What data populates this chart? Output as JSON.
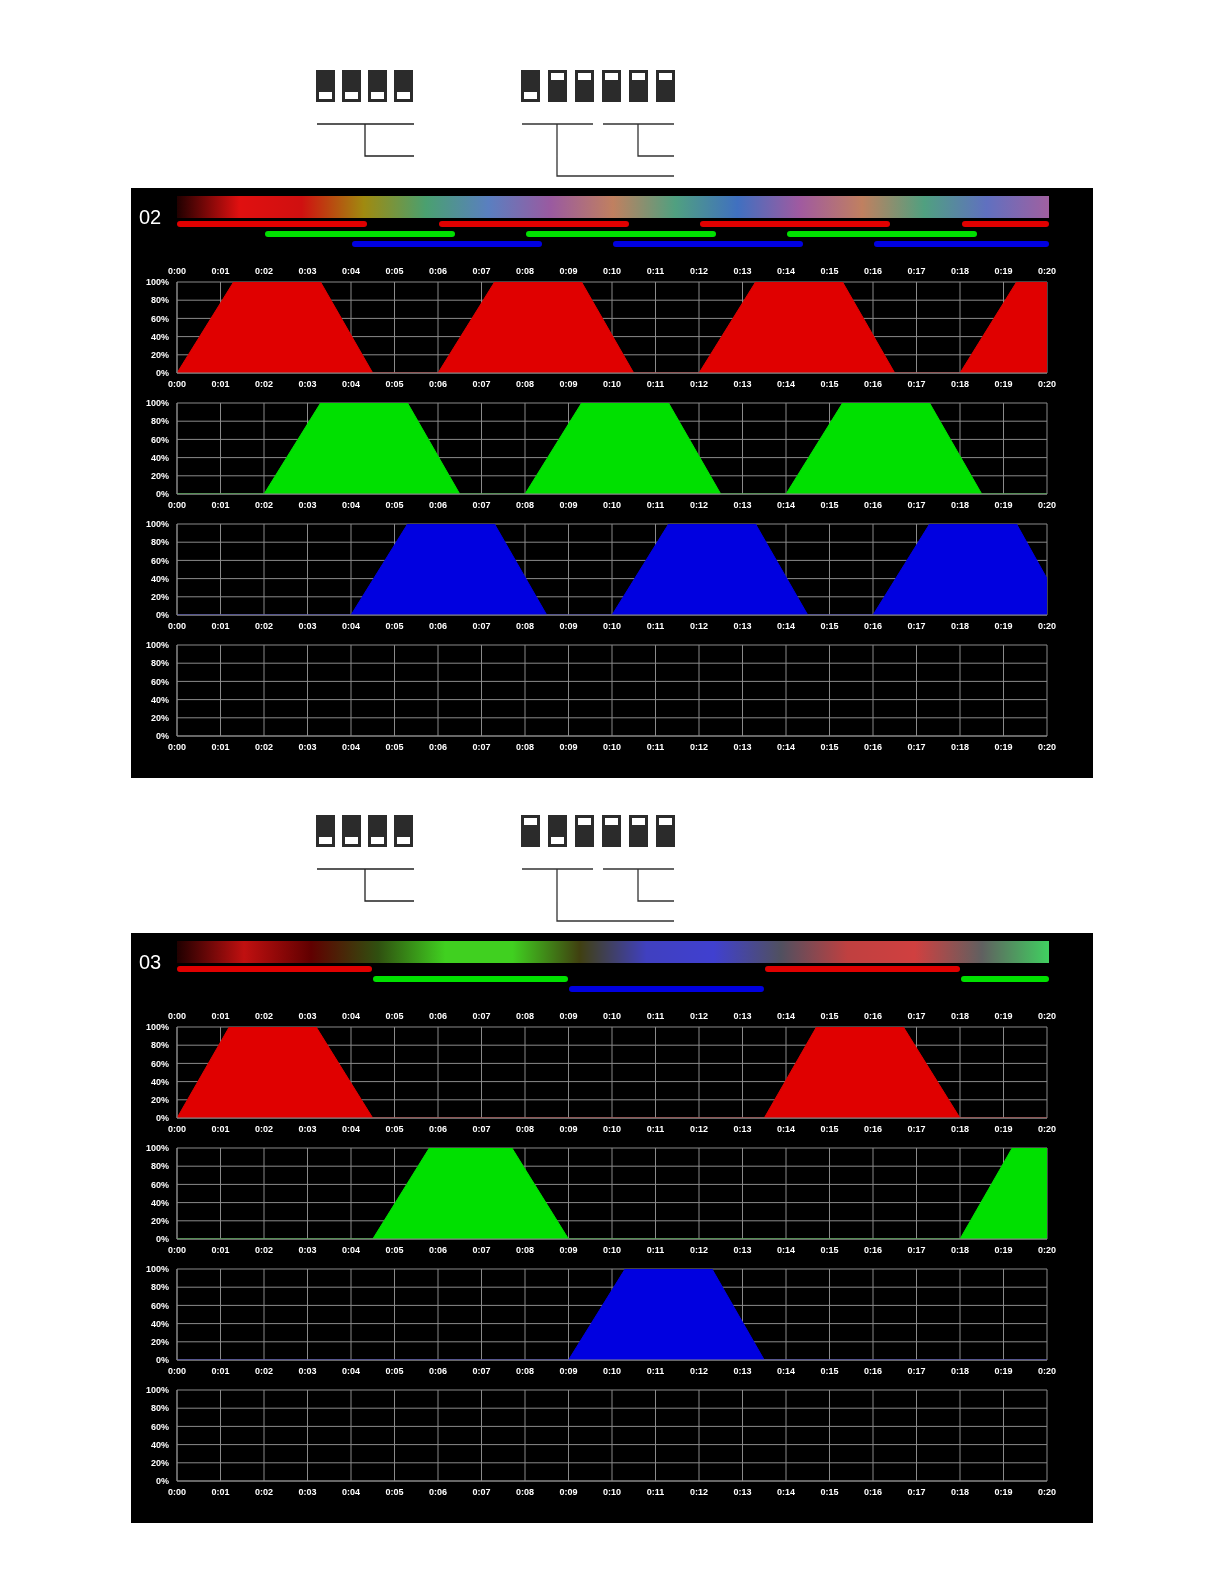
{
  "chart_data": [
    {
      "type": "area",
      "title": "02",
      "xlim": [
        0,
        20
      ],
      "xticks": [
        {
          "value": 0,
          "label": "0:00"
        },
        {
          "value": 1,
          "label": "0:01"
        },
        {
          "value": 2,
          "label": "0:02"
        },
        {
          "value": 3,
          "label": "0:03"
        },
        {
          "value": 4,
          "label": "0:04"
        },
        {
          "value": 5,
          "label": "0:05"
        },
        {
          "value": 6,
          "label": "0:06"
        },
        {
          "value": 7,
          "label": "0:07"
        },
        {
          "value": 8,
          "label": "0:08"
        },
        {
          "value": 9,
          "label": "0:09"
        },
        {
          "value": 10,
          "label": "0:10"
        },
        {
          "value": 11,
          "label": "0:11"
        },
        {
          "value": 12,
          "label": "0:12"
        },
        {
          "value": 13,
          "label": "0:13"
        },
        {
          "value": 14,
          "label": "0:14"
        },
        {
          "value": 15,
          "label": "0:15"
        },
        {
          "value": 16,
          "label": "0:16"
        },
        {
          "value": 17,
          "label": "0:17"
        },
        {
          "value": 18,
          "label": "0:18"
        },
        {
          "value": 19,
          "label": "0:19"
        },
        {
          "value": 20,
          "label": "0:20"
        }
      ],
      "x2lim": [
        0,
        20
      ],
      "x2ticks": [
        {
          "value": 0,
          "label": "0:00"
        },
        {
          "value": 1,
          "label": "0:01"
        },
        {
          "value": 2,
          "label": "0:02"
        },
        {
          "value": 3,
          "label": "0:03"
        },
        {
          "value": 4,
          "label": "0:04"
        },
        {
          "value": 5,
          "label": "0:05"
        },
        {
          "value": 6,
          "label": "0:06"
        },
        {
          "value": 7,
          "label": "0:07"
        },
        {
          "value": 8,
          "label": "0:08"
        },
        {
          "value": 9,
          "label": "0:09"
        },
        {
          "value": 10,
          "label": "0:10"
        },
        {
          "value": 11,
          "label": "0:11"
        },
        {
          "value": 12,
          "label": "0:12"
        },
        {
          "value": 13,
          "label": "0:13"
        },
        {
          "value": 14,
          "label": "0:14"
        },
        {
          "value": 15,
          "label": "0:15"
        },
        {
          "value": 16,
          "label": "0:16"
        },
        {
          "value": 17,
          "label": "0:17"
        },
        {
          "value": 18,
          "label": "0:18"
        },
        {
          "value": 19,
          "label": "0:19"
        },
        {
          "value": 20,
          "label": "0:20"
        }
      ],
      "ylim": [
        0,
        100
      ],
      "yticks": [
        {
          "value": 0,
          "label": "0%"
        },
        {
          "value": 20,
          "label": "20%"
        },
        {
          "value": 40,
          "label": "40%"
        },
        {
          "value": 60,
          "label": "60%"
        },
        {
          "value": 80,
          "label": "80%"
        },
        {
          "value": 100,
          "label": "100%"
        }
      ],
      "grid": true,
      "series": [
        {
          "color": "#e00000",
          "x": [
            0,
            1.3,
            3.3,
            4.5,
            6,
            7.3,
            9.3,
            10.5,
            12,
            13.3,
            15.3,
            16.5,
            18,
            19.3,
            20
          ],
          "values": [
            0,
            100,
            100,
            0,
            0,
            100,
            100,
            0,
            0,
            100,
            100,
            0,
            0,
            100,
            100
          ]
        }
      ]
    },
    {
      "type": "area",
      "xlim": [
        0,
        20
      ],
      "xticks": [
        {
          "value": 0,
          "label": "0:00"
        },
        {
          "value": 1,
          "label": "0:01"
        },
        {
          "value": 2,
          "label": "0:02"
        },
        {
          "value": 3,
          "label": "0:03"
        },
        {
          "value": 4,
          "label": "0:04"
        },
        {
          "value": 5,
          "label": "0:05"
        },
        {
          "value": 6,
          "label": "0:06"
        },
        {
          "value": 7,
          "label": "0:07"
        },
        {
          "value": 8,
          "label": "0:08"
        },
        {
          "value": 9,
          "label": "0:09"
        },
        {
          "value": 10,
          "label": "0:10"
        },
        {
          "value": 11,
          "label": "0:11"
        },
        {
          "value": 12,
          "label": "0:12"
        },
        {
          "value": 13,
          "label": "0:13"
        },
        {
          "value": 14,
          "label": "0:14"
        },
        {
          "value": 15,
          "label": "0:15"
        },
        {
          "value": 16,
          "label": "0:16"
        },
        {
          "value": 17,
          "label": "0:17"
        },
        {
          "value": 18,
          "label": "0:18"
        },
        {
          "value": 19,
          "label": "0:19"
        },
        {
          "value": 20,
          "label": "0:20"
        }
      ],
      "ylim": [
        0,
        100
      ],
      "yticks": [
        {
          "value": 0,
          "label": "0%"
        },
        {
          "value": 20,
          "label": "20%"
        },
        {
          "value": 40,
          "label": "40%"
        },
        {
          "value": 60,
          "label": "60%"
        },
        {
          "value": 80,
          "label": "80%"
        },
        {
          "value": 100,
          "label": "100%"
        }
      ],
      "grid": true,
      "series": [
        {
          "color": "#00e000",
          "x": [
            0,
            2,
            3.3,
            5.3,
            6.5,
            8,
            9.3,
            11.3,
            12.5,
            14,
            15.3,
            17.3,
            18.5,
            20
          ],
          "values": [
            0,
            0,
            100,
            100,
            0,
            0,
            100,
            100,
            0,
            0,
            100,
            100,
            0,
            0
          ]
        }
      ]
    },
    {
      "type": "area",
      "xlim": [
        0,
        20
      ],
      "xticks": [
        {
          "value": 0,
          "label": "0:00"
        },
        {
          "value": 1,
          "label": "0:01"
        },
        {
          "value": 2,
          "label": "0:02"
        },
        {
          "value": 3,
          "label": "0:03"
        },
        {
          "value": 4,
          "label": "0:04"
        },
        {
          "value": 5,
          "label": "0:05"
        },
        {
          "value": 6,
          "label": "0:06"
        },
        {
          "value": 7,
          "label": "0:07"
        },
        {
          "value": 8,
          "label": "0:08"
        },
        {
          "value": 9,
          "label": "0:09"
        },
        {
          "value": 10,
          "label": "0:10"
        },
        {
          "value": 11,
          "label": "0:11"
        },
        {
          "value": 12,
          "label": "0:12"
        },
        {
          "value": 13,
          "label": "0:13"
        },
        {
          "value": 14,
          "label": "0:14"
        },
        {
          "value": 15,
          "label": "0:15"
        },
        {
          "value": 16,
          "label": "0:16"
        },
        {
          "value": 17,
          "label": "0:17"
        },
        {
          "value": 18,
          "label": "0:18"
        },
        {
          "value": 19,
          "label": "0:19"
        },
        {
          "value": 20,
          "label": "0:20"
        }
      ],
      "ylim": [
        0,
        100
      ],
      "yticks": [
        {
          "value": 0,
          "label": "0%"
        },
        {
          "value": 20,
          "label": "20%"
        },
        {
          "value": 40,
          "label": "40%"
        },
        {
          "value": 60,
          "label": "60%"
        },
        {
          "value": 80,
          "label": "80%"
        },
        {
          "value": 100,
          "label": "100%"
        }
      ],
      "grid": true,
      "series": [
        {
          "color": "#0000e0",
          "x": [
            0,
            4,
            5.3,
            7.3,
            8.5,
            10,
            11.3,
            13.3,
            14.5,
            16,
            17.3,
            19.3,
            20
          ],
          "values": [
            0,
            0,
            100,
            100,
            0,
            0,
            100,
            100,
            0,
            0,
            100,
            100,
            40
          ]
        }
      ]
    },
    {
      "type": "area",
      "xlim": [
        0,
        20
      ],
      "xticks": [
        {
          "value": 0,
          "label": "0:00"
        },
        {
          "value": 1,
          "label": "0:01"
        },
        {
          "value": 2,
          "label": "0:02"
        },
        {
          "value": 3,
          "label": "0:03"
        },
        {
          "value": 4,
          "label": "0:04"
        },
        {
          "value": 5,
          "label": "0:05"
        },
        {
          "value": 6,
          "label": "0:06"
        },
        {
          "value": 7,
          "label": "0:07"
        },
        {
          "value": 8,
          "label": "0:08"
        },
        {
          "value": 9,
          "label": "0:09"
        },
        {
          "value": 10,
          "label": "0:10"
        },
        {
          "value": 11,
          "label": "0:11"
        },
        {
          "value": 12,
          "label": "0:12"
        },
        {
          "value": 13,
          "label": "0:13"
        },
        {
          "value": 14,
          "label": "0:14"
        },
        {
          "value": 15,
          "label": "0:15"
        },
        {
          "value": 16,
          "label": "0:16"
        },
        {
          "value": 17,
          "label": "0:17"
        },
        {
          "value": 18,
          "label": "0:18"
        },
        {
          "value": 19,
          "label": "0:19"
        },
        {
          "value": 20,
          "label": "0:20"
        }
      ],
      "ylim": [
        0,
        100
      ],
      "yticks": [
        {
          "value": 0,
          "label": "0%"
        },
        {
          "value": 20,
          "label": "20%"
        },
        {
          "value": 40,
          "label": "40%"
        },
        {
          "value": 60,
          "label": "60%"
        },
        {
          "value": 80,
          "label": "80%"
        },
        {
          "value": 100,
          "label": "100%"
        }
      ],
      "grid": true
    },
    {
      "type": "area",
      "title": "03",
      "xlim": [
        0,
        20
      ],
      "xticks": [
        {
          "value": 0,
          "label": "0:00"
        },
        {
          "value": 1,
          "label": "0:01"
        },
        {
          "value": 2,
          "label": "0:02"
        },
        {
          "value": 3,
          "label": "0:03"
        },
        {
          "value": 4,
          "label": "0:04"
        },
        {
          "value": 5,
          "label": "0:05"
        },
        {
          "value": 6,
          "label": "0:06"
        },
        {
          "value": 7,
          "label": "0:07"
        },
        {
          "value": 8,
          "label": "0:08"
        },
        {
          "value": 9,
          "label": "0:09"
        },
        {
          "value": 10,
          "label": "0:10"
        },
        {
          "value": 11,
          "label": "0:11"
        },
        {
          "value": 12,
          "label": "0:12"
        },
        {
          "value": 13,
          "label": "0:13"
        },
        {
          "value": 14,
          "label": "0:14"
        },
        {
          "value": 15,
          "label": "0:15"
        },
        {
          "value": 16,
          "label": "0:16"
        },
        {
          "value": 17,
          "label": "0:17"
        },
        {
          "value": 18,
          "label": "0:18"
        },
        {
          "value": 19,
          "label": "0:19"
        },
        {
          "value": 20,
          "label": "0:20"
        }
      ],
      "x2lim": [
        0,
        20
      ],
      "x2ticks": [
        {
          "value": 0,
          "label": "0:00"
        },
        {
          "value": 1,
          "label": "0:01"
        },
        {
          "value": 2,
          "label": "0:02"
        },
        {
          "value": 3,
          "label": "0:03"
        },
        {
          "value": 4,
          "label": "0:04"
        },
        {
          "value": 5,
          "label": "0:05"
        },
        {
          "value": 6,
          "label": "0:06"
        },
        {
          "value": 7,
          "label": "0:07"
        },
        {
          "value": 8,
          "label": "0:08"
        },
        {
          "value": 9,
          "label": "0:09"
        },
        {
          "value": 10,
          "label": "0:10"
        },
        {
          "value": 11,
          "label": "0:11"
        },
        {
          "value": 12,
          "label": "0:12"
        },
        {
          "value": 13,
          "label": "0:13"
        },
        {
          "value": 14,
          "label": "0:14"
        },
        {
          "value": 15,
          "label": "0:15"
        },
        {
          "value": 16,
          "label": "0:16"
        },
        {
          "value": 17,
          "label": "0:17"
        },
        {
          "value": 18,
          "label": "0:18"
        },
        {
          "value": 19,
          "label": "0:19"
        },
        {
          "value": 20,
          "label": "0:20"
        }
      ],
      "ylim": [
        0,
        100
      ],
      "yticks": [
        {
          "value": 0,
          "label": "0%"
        },
        {
          "value": 20,
          "label": "20%"
        },
        {
          "value": 40,
          "label": "40%"
        },
        {
          "value": 60,
          "label": "60%"
        },
        {
          "value": 80,
          "label": "80%"
        },
        {
          "value": 100,
          "label": "100%"
        }
      ],
      "grid": true,
      "series": [
        {
          "color": "#e00000",
          "x": [
            0,
            1.2,
            3.2,
            4.5,
            13.5,
            14.7,
            16.7,
            18,
            20
          ],
          "values": [
            0,
            100,
            100,
            0,
            0,
            100,
            100,
            0,
            0
          ]
        }
      ]
    },
    {
      "type": "area",
      "xlim": [
        0,
        20
      ],
      "xticks": [
        {
          "value": 0,
          "label": "0:00"
        },
        {
          "value": 1,
          "label": "0:01"
        },
        {
          "value": 2,
          "label": "0:02"
        },
        {
          "value": 3,
          "label": "0:03"
        },
        {
          "value": 4,
          "label": "0:04"
        },
        {
          "value": 5,
          "label": "0:05"
        },
        {
          "value": 6,
          "label": "0:06"
        },
        {
          "value": 7,
          "label": "0:07"
        },
        {
          "value": 8,
          "label": "0:08"
        },
        {
          "value": 9,
          "label": "0:09"
        },
        {
          "value": 10,
          "label": "0:10"
        },
        {
          "value": 11,
          "label": "0:11"
        },
        {
          "value": 12,
          "label": "0:12"
        },
        {
          "value": 13,
          "label": "0:13"
        },
        {
          "value": 14,
          "label": "0:14"
        },
        {
          "value": 15,
          "label": "0:15"
        },
        {
          "value": 16,
          "label": "0:16"
        },
        {
          "value": 17,
          "label": "0:17"
        },
        {
          "value": 18,
          "label": "0:18"
        },
        {
          "value": 19,
          "label": "0:19"
        },
        {
          "value": 20,
          "label": "0:20"
        }
      ],
      "ylim": [
        0,
        100
      ],
      "yticks": [
        {
          "value": 0,
          "label": "0%"
        },
        {
          "value": 20,
          "label": "20%"
        },
        {
          "value": 40,
          "label": "40%"
        },
        {
          "value": 60,
          "label": "60%"
        },
        {
          "value": 80,
          "label": "80%"
        },
        {
          "value": 100,
          "label": "100%"
        }
      ],
      "grid": true,
      "series": [
        {
          "color": "#00e000",
          "x": [
            0,
            4.5,
            5.8,
            7.7,
            9,
            18,
            19.2,
            20
          ],
          "values": [
            0,
            0,
            100,
            100,
            0,
            0,
            100,
            100
          ]
        }
      ]
    },
    {
      "type": "area",
      "xlim": [
        0,
        20
      ],
      "xticks": [
        {
          "value": 0,
          "label": "0:00"
        },
        {
          "value": 1,
          "label": "0:01"
        },
        {
          "value": 2,
          "label": "0:02"
        },
        {
          "value": 3,
          "label": "0:03"
        },
        {
          "value": 4,
          "label": "0:04"
        },
        {
          "value": 5,
          "label": "0:05"
        },
        {
          "value": 6,
          "label": "0:06"
        },
        {
          "value": 7,
          "label": "0:07"
        },
        {
          "value": 8,
          "label": "0:08"
        },
        {
          "value": 9,
          "label": "0:09"
        },
        {
          "value": 10,
          "label": "0:10"
        },
        {
          "value": 11,
          "label": "0:11"
        },
        {
          "value": 12,
          "label": "0:12"
        },
        {
          "value": 13,
          "label": "0:13"
        },
        {
          "value": 14,
          "label": "0:14"
        },
        {
          "value": 15,
          "label": "0:15"
        },
        {
          "value": 16,
          "label": "0:16"
        },
        {
          "value": 17,
          "label": "0:17"
        },
        {
          "value": 18,
          "label": "0:18"
        },
        {
          "value": 19,
          "label": "0:19"
        },
        {
          "value": 20,
          "label": "0:20"
        }
      ],
      "ylim": [
        0,
        100
      ],
      "yticks": [
        {
          "value": 0,
          "label": "0%"
        },
        {
          "value": 20,
          "label": "20%"
        },
        {
          "value": 40,
          "label": "40%"
        },
        {
          "value": 60,
          "label": "60%"
        },
        {
          "value": 80,
          "label": "80%"
        },
        {
          "value": 100,
          "label": "100%"
        }
      ],
      "grid": true,
      "series": [
        {
          "color": "#0000e0",
          "x": [
            0,
            9,
            10.3,
            12.3,
            13.5,
            20
          ],
          "values": [
            0,
            0,
            100,
            100,
            0,
            0
          ]
        }
      ]
    },
    {
      "type": "area",
      "xlim": [
        0,
        20
      ],
      "xticks": [
        {
          "value": 0,
          "label": "0:00"
        },
        {
          "value": 1,
          "label": "0:01"
        },
        {
          "value": 2,
          "label": "0:02"
        },
        {
          "value": 3,
          "label": "0:03"
        },
        {
          "value": 4,
          "label": "0:04"
        },
        {
          "value": 5,
          "label": "0:05"
        },
        {
          "value": 6,
          "label": "0:06"
        },
        {
          "value": 7,
          "label": "0:07"
        },
        {
          "value": 8,
          "label": "0:08"
        },
        {
          "value": 9,
          "label": "0:09"
        },
        {
          "value": 10,
          "label": "0:10"
        },
        {
          "value": 11,
          "label": "0:11"
        },
        {
          "value": 12,
          "label": "0:12"
        },
        {
          "value": 13,
          "label": "0:13"
        },
        {
          "value": 14,
          "label": "0:14"
        },
        {
          "value": 15,
          "label": "0:15"
        },
        {
          "value": 16,
          "label": "0:16"
        },
        {
          "value": 17,
          "label": "0:17"
        },
        {
          "value": 18,
          "label": "0:18"
        },
        {
          "value": 19,
          "label": "0:19"
        },
        {
          "value": 20,
          "label": "0:20"
        }
      ],
      "ylim": [
        0,
        100
      ],
      "yticks": [
        {
          "value": 0,
          "label": "0%"
        },
        {
          "value": 20,
          "label": "20%"
        },
        {
          "value": 40,
          "label": "40%"
        },
        {
          "value": 60,
          "label": "60%"
        },
        {
          "value": 80,
          "label": "80%"
        },
        {
          "value": 100,
          "label": "100%"
        }
      ],
      "grid": true
    }
  ]
}
